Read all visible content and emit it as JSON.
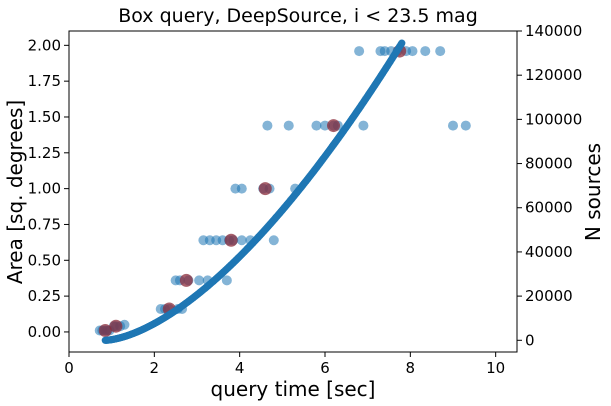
{
  "chart_data": {
    "type": "scatter",
    "title": "Box query, DeepSource, i < 23.5 mag",
    "xlabel": "query time [sec]",
    "ylabel_left": "Area [sq. degrees]",
    "ylabel_right": "N sources",
    "xlim": [
      0,
      10.5
    ],
    "ylim_left": [
      -0.14,
      2.1
    ],
    "ylim_right": [
      -5300,
      140000
    ],
    "xticks": [
      0,
      2,
      4,
      6,
      8,
      10
    ],
    "yticks_left": [
      0.0,
      0.25,
      0.5,
      0.75,
      1.0,
      1.25,
      1.5,
      1.75,
      2.0
    ],
    "yticks_right": [
      0,
      20000,
      40000,
      60000,
      80000,
      100000,
      120000,
      140000
    ],
    "grid": false,
    "colors": {
      "area_points": "#1f77b4",
      "area_point_alpha": 0.55,
      "highlight_points": "#8b2b3a",
      "nsources_curve": "#1f77b4"
    },
    "series": [
      {
        "axis": "left",
        "points": [
          [
            0.72,
            0.01
          ],
          [
            0.78,
            0.01
          ],
          [
            0.85,
            0.01
          ],
          [
            0.9,
            0.01
          ],
          [
            0.95,
            0.01
          ],
          [
            1.05,
            0.04
          ],
          [
            1.1,
            0.04
          ],
          [
            1.2,
            0.04
          ],
          [
            1.3,
            0.05
          ],
          [
            2.15,
            0.16
          ],
          [
            2.25,
            0.16
          ],
          [
            2.35,
            0.16
          ],
          [
            2.55,
            0.16
          ],
          [
            2.65,
            0.16
          ],
          [
            2.5,
            0.36
          ],
          [
            2.6,
            0.36
          ],
          [
            2.8,
            0.36
          ],
          [
            3.05,
            0.36
          ],
          [
            3.25,
            0.36
          ],
          [
            3.7,
            0.36
          ],
          [
            3.15,
            0.64
          ],
          [
            3.3,
            0.64
          ],
          [
            3.45,
            0.64
          ],
          [
            3.6,
            0.64
          ],
          [
            3.75,
            0.64
          ],
          [
            3.85,
            0.64
          ],
          [
            4.05,
            0.64
          ],
          [
            4.25,
            0.64
          ],
          [
            4.8,
            0.64
          ],
          [
            3.9,
            1.0
          ],
          [
            4.05,
            1.0
          ],
          [
            4.55,
            1.0
          ],
          [
            4.7,
            1.0
          ],
          [
            5.3,
            1.0
          ],
          [
            4.65,
            1.44
          ],
          [
            5.15,
            1.44
          ],
          [
            5.8,
            1.44
          ],
          [
            6.0,
            1.44
          ],
          [
            6.2,
            1.44
          ],
          [
            6.3,
            1.44
          ],
          [
            6.9,
            1.44
          ],
          [
            9.0,
            1.44
          ],
          [
            9.3,
            1.44
          ],
          [
            6.8,
            1.96
          ],
          [
            7.3,
            1.96
          ],
          [
            7.4,
            1.96
          ],
          [
            7.55,
            1.96
          ],
          [
            7.7,
            1.96
          ],
          [
            7.9,
            1.96
          ],
          [
            8.05,
            1.96
          ],
          [
            8.35,
            1.96
          ],
          [
            8.7,
            1.96
          ]
        ]
      },
      {
        "axis": "left",
        "points": [
          [
            0.85,
            0.01
          ],
          [
            1.1,
            0.04
          ],
          [
            2.35,
            0.16
          ],
          [
            2.75,
            0.36
          ],
          [
            3.8,
            0.64
          ],
          [
            4.6,
            1.0
          ],
          [
            6.2,
            1.44
          ],
          [
            7.75,
            1.96
          ]
        ]
      },
      {
        "axis": "right",
        "x_range": [
          0.85,
          7.8
        ],
        "y_at_x_range": [
          0,
          134500
        ],
        "curve_exponent": 1.6
      }
    ]
  }
}
